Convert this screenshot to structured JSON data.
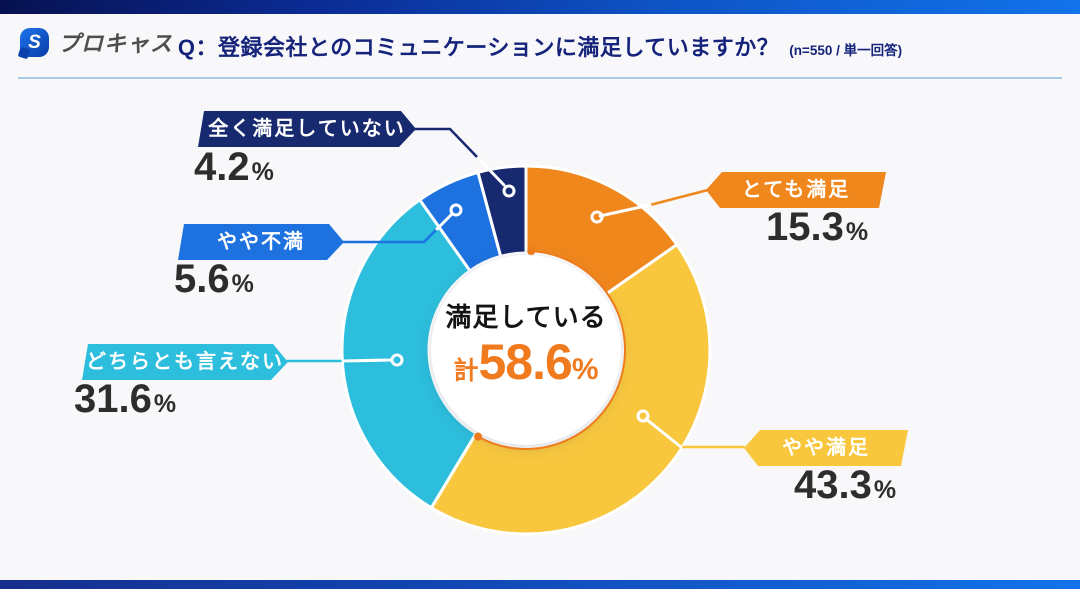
{
  "header": {
    "logo_text": "プロキャス",
    "logo_glyph": "S",
    "question": "Q：登録会社とのコミュニケーションに満足していますか？",
    "sample_note": "(n=550 / 単一回答)"
  },
  "chart_data": {
    "type": "pie",
    "title": "登録会社とのコミュニケーションに満足していますか？",
    "sample_size": "n=550",
    "response_type": "単一回答",
    "center_label": "満足している",
    "center_prefix": "計",
    "center_value": "58.6",
    "center_unit": "%",
    "satisfied_total": 58.6,
    "accent_color": "#EE7C1F",
    "legend_position": "callout-labels",
    "segments": [
      {
        "id": "very-satisfied",
        "label": "とても満足",
        "value": 15.3,
        "display": "15.3",
        "unit": "%",
        "color": "#F0871D"
      },
      {
        "id": "somewhat-satisfied",
        "label": "やや満足",
        "value": 43.3,
        "display": "43.3",
        "unit": "%",
        "color": "#F8C73E"
      },
      {
        "id": "neutral",
        "label": "どちらとも言えない",
        "value": 31.6,
        "display": "31.6",
        "unit": "%",
        "color": "#2CBEDC"
      },
      {
        "id": "somewhat-dissatisfied",
        "label": "やや不満",
        "value": 5.6,
        "display": "5.6",
        "unit": "%",
        "color": "#1D72E0"
      },
      {
        "id": "not-satisfied-at-all",
        "label": "全く満足していない",
        "value": 4.2,
        "display": "4.2",
        "unit": "%",
        "color": "#17296F"
      }
    ]
  }
}
